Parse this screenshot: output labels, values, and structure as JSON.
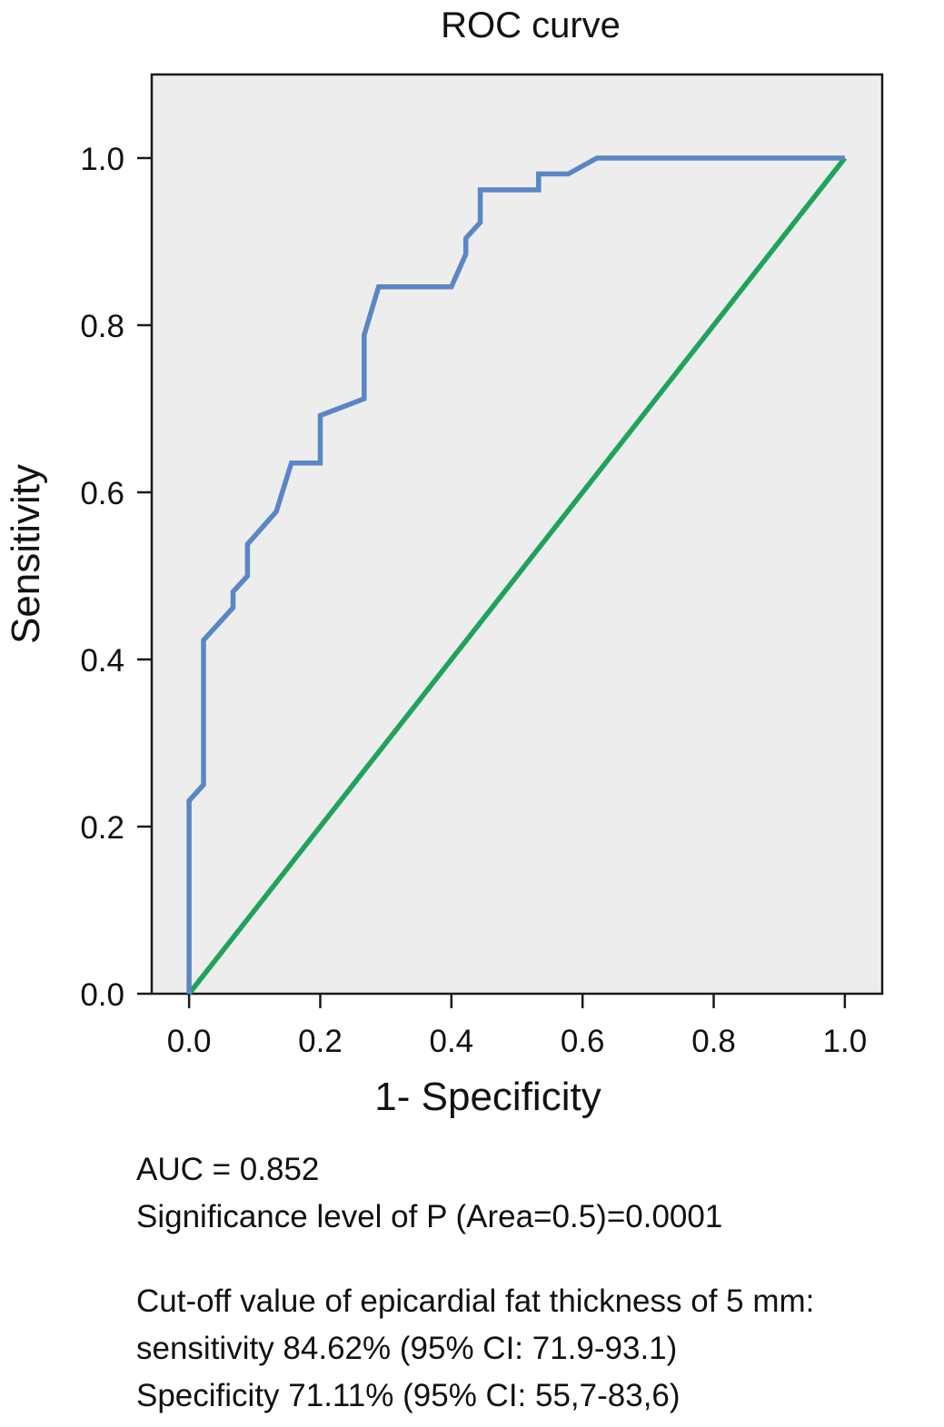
{
  "chart_data": {
    "type": "line",
    "title": "ROC curve",
    "xlabel": "1- Specificity",
    "ylabel": "Sensitivity",
    "xlim": [
      -0.057,
      1.057
    ],
    "ylim": [
      0.0,
      1.1
    ],
    "xticks": [
      "0.0",
      "0.2",
      "0.4",
      "0.6",
      "0.8",
      "1.0"
    ],
    "xtick_values": [
      0.0,
      0.2,
      0.4,
      0.6,
      0.8,
      1.0
    ],
    "yticks": [
      "0.0",
      "0.2",
      "0.4",
      "0.6",
      "0.8",
      "1.0"
    ],
    "ytick_values": [
      0.0,
      0.2,
      0.4,
      0.6,
      0.8,
      1.0
    ],
    "grid": false,
    "background": "#ededed",
    "series": [
      {
        "color": "#5b86c5",
        "points": [
          [
            0.0,
            0.0
          ],
          [
            0.0,
            0.231
          ],
          [
            0.022,
            0.25
          ],
          [
            0.022,
            0.423
          ],
          [
            0.067,
            0.462
          ],
          [
            0.067,
            0.481
          ],
          [
            0.089,
            0.5
          ],
          [
            0.089,
            0.538
          ],
          [
            0.133,
            0.577
          ],
          [
            0.156,
            0.635
          ],
          [
            0.2,
            0.635
          ],
          [
            0.2,
            0.692
          ],
          [
            0.267,
            0.712
          ],
          [
            0.267,
            0.788
          ],
          [
            0.289,
            0.846
          ],
          [
            0.4,
            0.846
          ],
          [
            0.422,
            0.885
          ],
          [
            0.422,
            0.904
          ],
          [
            0.444,
            0.923
          ],
          [
            0.444,
            0.962
          ],
          [
            0.533,
            0.962
          ],
          [
            0.533,
            0.981
          ],
          [
            0.578,
            0.981
          ],
          [
            0.622,
            1.0
          ],
          [
            1.0,
            1.0
          ]
        ]
      },
      {
        "color": "#1ea35a",
        "points": [
          [
            0.0,
            0.0
          ],
          [
            1.0,
            1.0
          ]
        ]
      }
    ]
  },
  "notes": {
    "auc": "AUC = 0.852",
    "significance": "Significance level of P (Area=0.5)=0.0001",
    "cutoff": "Cut-off value of epicardial fat thickness of 5 mm:",
    "sensitivity": "sensitivity 84.62% (95% CI: 71.9-93.1)",
    "specificity": "Specificity 71.11% (95% CI: 55,7-83,6)"
  }
}
